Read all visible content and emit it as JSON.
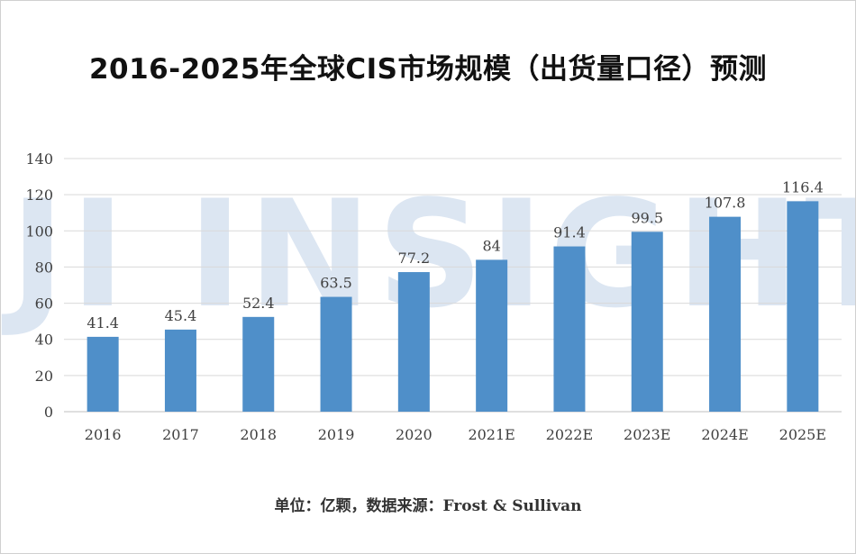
{
  "title": "2016-2025年全球CIS市场规模（出货量口径）预测",
  "watermark": "JI INSIGHTS",
  "footer": "单位：亿颗，数据来源：Frost & Sullivan",
  "colors": {
    "bar": "#4f8fc9",
    "grid": "#d9d9d9",
    "axis": "#bfbfbf",
    "text": "#404040",
    "watermark": "#dce6f2"
  },
  "chart_data": {
    "type": "bar",
    "title": "2016-2025年全球CIS市场规模（出货量口径）预测",
    "categories": [
      "2016",
      "2017",
      "2018",
      "2019",
      "2020",
      "2021E",
      "2022E",
      "2023E",
      "2024E",
      "2025E"
    ],
    "values": [
      41.4,
      45.4,
      52.4,
      63.5,
      77.2,
      84,
      91.4,
      99.5,
      107.8,
      116.4
    ],
    "data_labels": [
      "41.4",
      "45.4",
      "52.4",
      "63.5",
      "77.2",
      "84",
      "91.4",
      "99.5",
      "107.8",
      "116.4"
    ],
    "yticks": [
      0,
      20,
      40,
      60,
      80,
      100,
      120,
      140
    ],
    "ylim": [
      0,
      140
    ],
    "xlabel": "",
    "ylabel": "",
    "grid": true,
    "legend": "none"
  }
}
